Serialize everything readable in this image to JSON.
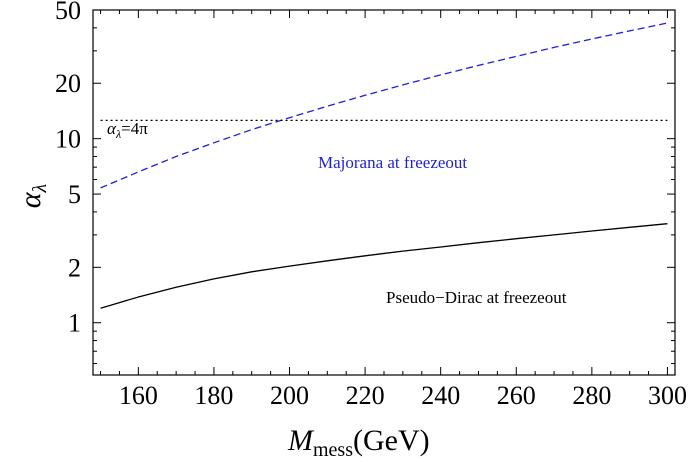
{
  "chart_data": {
    "type": "line",
    "xlabel_main": "M",
    "xlabel_sub": "mess",
    "xlabel_unit": "(GeV)",
    "ylabel_main": "α",
    "ylabel_sub": "λ",
    "xlim": [
      148,
      302
    ],
    "ylim": [
      0.52,
      50
    ],
    "yscale": "log",
    "x_ticks": [
      160,
      180,
      200,
      220,
      240,
      260,
      280,
      300
    ],
    "y_ticks": [
      1,
      2,
      5,
      10,
      20,
      50
    ],
    "grid": false,
    "series": [
      {
        "name": "Majorana at freezeout",
        "color": "#1f1fd6",
        "style": "dashed",
        "x": [
          150,
          160,
          170,
          180,
          190,
          200,
          210,
          220,
          230,
          240,
          250,
          260,
          270,
          280,
          290,
          300
        ],
        "y": [
          5.4,
          6.6,
          8.0,
          9.5,
          11.2,
          13.0,
          15.0,
          17.2,
          19.6,
          22.2,
          25.0,
          28.0,
          31.3,
          34.8,
          38.5,
          42.5
        ]
      },
      {
        "name": "Pseudo−Dirac at freezeout",
        "color": "#000000",
        "style": "solid",
        "x": [
          150,
          160,
          170,
          180,
          190,
          200,
          210,
          220,
          230,
          240,
          250,
          260,
          270,
          280,
          290,
          300
        ],
        "y": [
          1.2,
          1.38,
          1.56,
          1.73,
          1.89,
          2.03,
          2.17,
          2.31,
          2.45,
          2.58,
          2.72,
          2.86,
          3.0,
          3.15,
          3.3,
          3.45
        ]
      },
      {
        "name": "α_λ=4π",
        "color": "#000000",
        "style": "dotted",
        "x": [
          150,
          300
        ],
        "y": [
          12.566,
          12.566
        ]
      }
    ],
    "annotations": {
      "limit_main": "α",
      "limit_sub": "λ",
      "limit_rhs": "=4π",
      "majorana_label": "Majorana at freezeout",
      "pseudodirac_label": "Pseudo−Dirac at freezeout"
    },
    "colors": {
      "majorana": "#1f1fd6",
      "pseudodirac": "#000000"
    }
  }
}
